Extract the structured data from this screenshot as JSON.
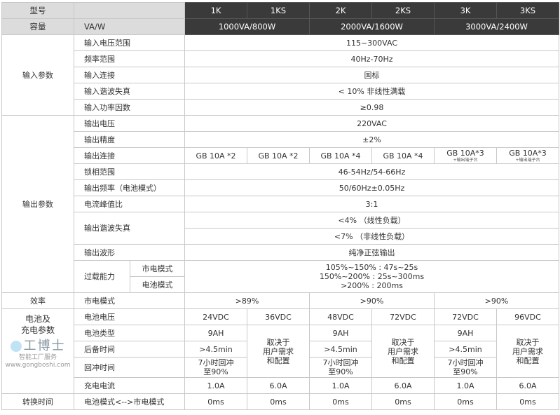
{
  "header": {
    "model_label": "型号",
    "capacity_label": "容量",
    "capacity_unit": "VA/W",
    "models": [
      "1K",
      "1KS",
      "2K",
      "2KS",
      "3K",
      "3KS"
    ],
    "capacities": [
      "1000VA/800W",
      "2000VA/1600W",
      "3000VA/2400W"
    ]
  },
  "input": {
    "group": "输入参数",
    "rows": [
      {
        "label": "输入电压范围",
        "value": "115~300VAC"
      },
      {
        "label": "频率范围",
        "value": "40Hz-70Hz"
      },
      {
        "label": "输入连接",
        "value": "国标"
      },
      {
        "label": "输入谐波失真",
        "value": "< 10% 非线性满载"
      },
      {
        "label": "输入功率因数",
        "value": "≥0.98"
      }
    ]
  },
  "output": {
    "group": "输出参数",
    "voltage": {
      "label": "输出电压",
      "value": "220VAC"
    },
    "precision": {
      "label": "输出精度",
      "value": "±2%"
    },
    "connection": {
      "label": "输出连接",
      "values": [
        "GB 10A *2",
        "GB 10A *2",
        "GB 10A *4",
        "GB 10A *4",
        "GB 10A*3",
        "GB 10A*3"
      ],
      "notes": [
        "+输出端子台",
        "+输出端子台"
      ]
    },
    "phase_lock": {
      "label": "锁相范围",
      "value": "46-54Hz/54-66Hz"
    },
    "freq_battery": {
      "label": "输出频率（电池模式）",
      "value": "50/60Hz±0.05Hz"
    },
    "crest": {
      "label": "电流峰值比",
      "value": "3:1"
    },
    "thd": {
      "label": "输出谐波失真",
      "values": [
        "<4%  （线性负载）",
        "<7%  （非线性负载）"
      ]
    },
    "waveform": {
      "label": "输出波形",
      "value": "纯净正弦输出"
    },
    "overload": {
      "label": "过载能力",
      "modes": [
        "市电模式",
        "电池模式"
      ],
      "lines": [
        "105%~150% : 47s~25s",
        "150%~200% : 25s~300ms",
        ">200% : 200ms"
      ]
    }
  },
  "efficiency": {
    "group": "效率",
    "mode": "市电模式",
    "values": [
      ">89%",
      ">90%",
      ">90%"
    ]
  },
  "battery": {
    "group_line1": "电池及",
    "group_line2": "充电参数",
    "voltage": {
      "label": "电池电压",
      "values": [
        "24VDC",
        "36VDC",
        "48VDC",
        "72VDC",
        "72VDC",
        "96VDC"
      ]
    },
    "type": {
      "label": "电池类型",
      "value": "9AH"
    },
    "backup": {
      "label": "后备时间",
      "value": ">4.5min"
    },
    "recharge": {
      "label": "回冲时间",
      "line1": "7小时回冲",
      "line2": "至90%"
    },
    "custom": {
      "line1": "取决于",
      "line2": "用户需求",
      "line3": "和配置"
    },
    "current": {
      "label": "充电电流",
      "values": [
        "1.0A",
        "6.0A",
        "1.0A",
        "6.0A",
        "1.0A",
        "6.0A"
      ]
    }
  },
  "transfer": {
    "group": "转换时间",
    "label": "电池模式<-->市电模式",
    "values": [
      "0ms",
      "0ms",
      "0ms",
      "0ms",
      "0ms",
      "0ms"
    ]
  },
  "watermark": {
    "brand": "工博士",
    "slogan": "智能工厂服务",
    "url": "www.gongboshi.com"
  }
}
